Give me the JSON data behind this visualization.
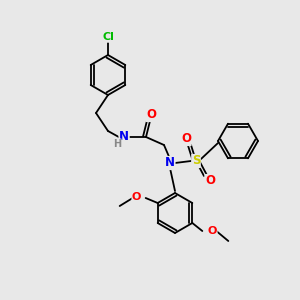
{
  "bg_color": "#e8e8e8",
  "bond_color": "#000000",
  "atom_colors": {
    "N": "#0000ee",
    "O": "#ff0000",
    "S": "#cccc00",
    "Cl": "#00bb00",
    "H": "#888888"
  },
  "figsize": [
    3.0,
    3.0
  ],
  "dpi": 100
}
